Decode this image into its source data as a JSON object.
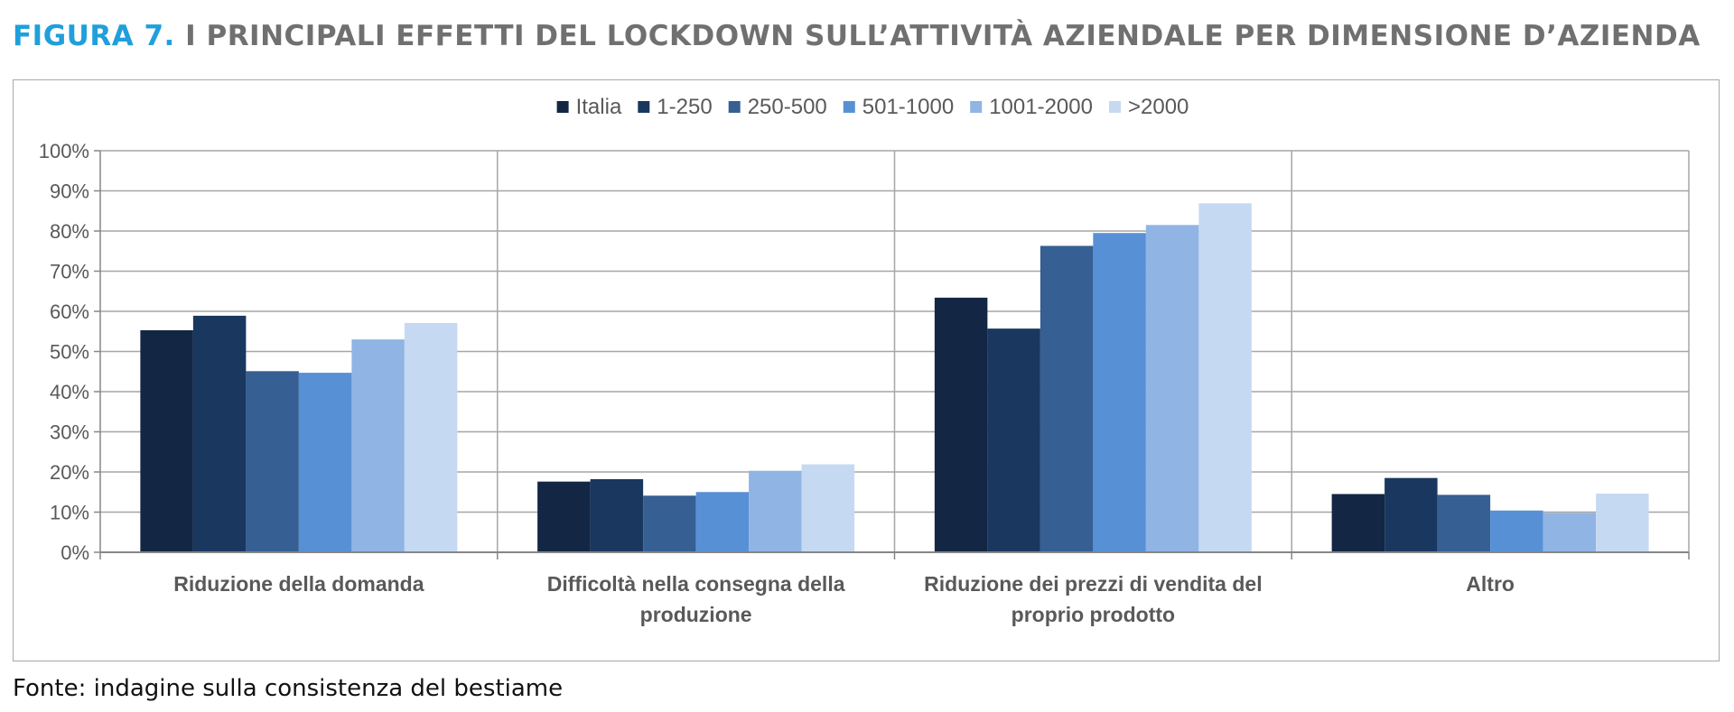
{
  "header": {
    "figure_label": "FIGURA 7.",
    "title_text": "I PRINCIPALI EFFETTI DEL LOCKDOWN SULL’ATTIVITÀ AZIENDALE PER DIMENSIONE D’AZIENDA"
  },
  "footer": {
    "source": "Fonte: indagine sulla consistenza del bestiame"
  },
  "colors": {
    "title_accent": "#1f9fdb",
    "title_text": "#707070"
  },
  "chart_data": {
    "type": "bar",
    "categories": [
      [
        "Riduzione della domanda"
      ],
      [
        "Difficoltà nella consegna della",
        "produzione"
      ],
      [
        "Riduzione dei prezzi di vendita del",
        "proprio prodotto"
      ],
      [
        "Altro"
      ]
    ],
    "series": [
      {
        "name": "Italia",
        "color": "#132644",
        "values": [
          55.3,
          17.6,
          63.4,
          14.5
        ]
      },
      {
        "name": "1-250",
        "color": "#1a375f",
        "values": [
          58.9,
          18.2,
          55.7,
          18.5
        ]
      },
      {
        "name": "250-500",
        "color": "#365f93",
        "values": [
          45.1,
          14.1,
          76.3,
          14.3
        ]
      },
      {
        "name": "501-1000",
        "color": "#5890d6",
        "values": [
          44.7,
          15.0,
          79.5,
          10.4
        ]
      },
      {
        "name": "1001-2000",
        "color": "#90b4e4",
        "values": [
          53.0,
          20.3,
          81.5,
          9.8
        ]
      },
      {
        "name": ">2000",
        "color": "#c6d9f2",
        "values": [
          57.1,
          21.9,
          86.9,
          14.6
        ]
      }
    ],
    "yticks": [
      "0%",
      "10%",
      "20%",
      "30%",
      "40%",
      "50%",
      "60%",
      "70%",
      "80%",
      "90%",
      "100%"
    ],
    "ylim": [
      0,
      100
    ],
    "grid": true,
    "legend_position": "top-center"
  }
}
